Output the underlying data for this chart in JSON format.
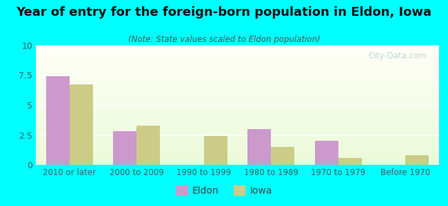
{
  "title": "Year of entry for the foreign-born population in Eldon, Iowa",
  "subtitle": "(Note: State values scaled to Eldon population)",
  "categories": [
    "2010 or later",
    "2000 to 2009",
    "1990 to 1999",
    "1980 to 1989",
    "1970 to 1979",
    "Before 1970"
  ],
  "eldon_values": [
    7.4,
    2.8,
    0,
    3.0,
    2.0,
    0
  ],
  "iowa_values": [
    6.7,
    3.3,
    2.4,
    1.5,
    0.6,
    0.8
  ],
  "eldon_color": "#cc99cc",
  "iowa_color": "#cccc88",
  "background_outer": "#00ffff",
  "ylim": [
    0,
    10
  ],
  "yticks": [
    0,
    2.5,
    5,
    7.5,
    10
  ],
  "bar_width": 0.35,
  "legend_labels": [
    "Eldon",
    "Iowa"
  ],
  "watermark": "City-Data.com",
  "title_fontsize": 13,
  "subtitle_fontsize": 8.5,
  "tick_fontsize": 9,
  "xtick_fontsize": 8.5
}
